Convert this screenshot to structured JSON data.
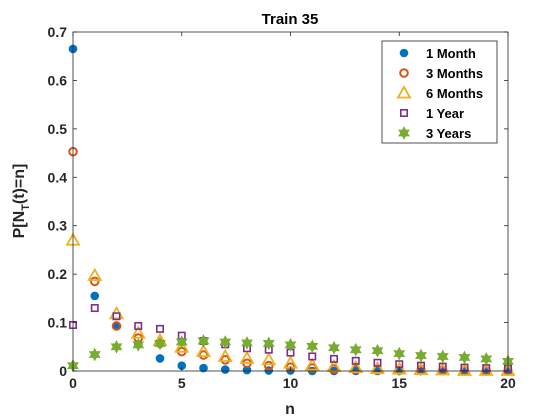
{
  "chart_data": {
    "type": "scatter",
    "title": "Train 35",
    "xlabel": "n",
    "ylabel_main": "P[N",
    "ylabel_sub": "T",
    "ylabel_rest": "(t)=n]",
    "xlim": [
      0,
      20
    ],
    "ylim": [
      0,
      0.7
    ],
    "xticks": [
      0,
      5,
      10,
      15,
      20
    ],
    "yticks": [
      0,
      0.1,
      0.2,
      0.3,
      0.4,
      0.5,
      0.6,
      0.7
    ],
    "xtick_labels": [
      "0",
      "5",
      "10",
      "15",
      "20"
    ],
    "ytick_labels": [
      "0",
      "0.1",
      "0.2",
      "0.3",
      "0.4",
      "0.5",
      "0.6",
      "0.7"
    ],
    "grid": false,
    "legend_position": "top-right",
    "series": [
      {
        "name": "1 Month",
        "marker": "filled-circle",
        "color": "#0072BD",
        "x": [
          0,
          1,
          2,
          3,
          4,
          5,
          6,
          7,
          8,
          9,
          10,
          11,
          12,
          13,
          14,
          15,
          16,
          17,
          18,
          19,
          20
        ],
        "y": [
          0.665,
          0.155,
          0.093,
          0.055,
          0.026,
          0.011,
          0.006,
          0.003,
          0.002,
          0.001,
          0.001,
          0.0,
          0.0,
          0.0,
          0.0,
          0.0,
          0.0,
          0.0,
          0.0,
          0.0,
          0.0
        ]
      },
      {
        "name": "3 Months",
        "marker": "circle",
        "color": "#D95319",
        "x": [
          0,
          1,
          2,
          3,
          4,
          5,
          6,
          7,
          8,
          9,
          10,
          11,
          12,
          13,
          14,
          15,
          16,
          17,
          18,
          19,
          20
        ],
        "y": [
          0.453,
          0.185,
          0.093,
          0.068,
          0.057,
          0.04,
          0.033,
          0.023,
          0.016,
          0.011,
          0.008,
          0.006,
          0.004,
          0.003,
          0.002,
          0.001,
          0.001,
          0.001,
          0.0,
          0.0,
          0.0
        ]
      },
      {
        "name": "6 Months",
        "marker": "triangle",
        "color": "#EDB120",
        "x": [
          0,
          1,
          2,
          3,
          4,
          5,
          6,
          7,
          8,
          9,
          10,
          11,
          12,
          13,
          14,
          15,
          16,
          17,
          18,
          19,
          20
        ],
        "y": [
          0.27,
          0.197,
          0.118,
          0.078,
          0.063,
          0.049,
          0.04,
          0.03,
          0.026,
          0.023,
          0.016,
          0.012,
          0.009,
          0.007,
          0.005,
          0.004,
          0.003,
          0.002,
          0.001,
          0.001,
          0.001
        ]
      },
      {
        "name": "1 Year",
        "marker": "square",
        "color": "#7E2F8E",
        "x": [
          0,
          1,
          2,
          3,
          4,
          5,
          6,
          7,
          8,
          9,
          10,
          11,
          12,
          13,
          14,
          15,
          16,
          17,
          18,
          19,
          20
        ],
        "y": [
          0.095,
          0.13,
          0.113,
          0.093,
          0.087,
          0.073,
          0.062,
          0.055,
          0.047,
          0.044,
          0.038,
          0.03,
          0.025,
          0.021,
          0.017,
          0.014,
          0.011,
          0.009,
          0.007,
          0.006,
          0.005
        ]
      },
      {
        "name": "3 Years",
        "marker": "hexagram",
        "color": "#77AC30",
        "x": [
          0,
          1,
          2,
          3,
          4,
          5,
          6,
          7,
          8,
          9,
          10,
          11,
          12,
          13,
          14,
          15,
          16,
          17,
          18,
          19,
          20
        ],
        "y": [
          0.011,
          0.034,
          0.05,
          0.054,
          0.057,
          0.06,
          0.062,
          0.06,
          0.058,
          0.057,
          0.054,
          0.051,
          0.048,
          0.044,
          0.042,
          0.036,
          0.032,
          0.03,
          0.028,
          0.025,
          0.02
        ]
      }
    ]
  }
}
